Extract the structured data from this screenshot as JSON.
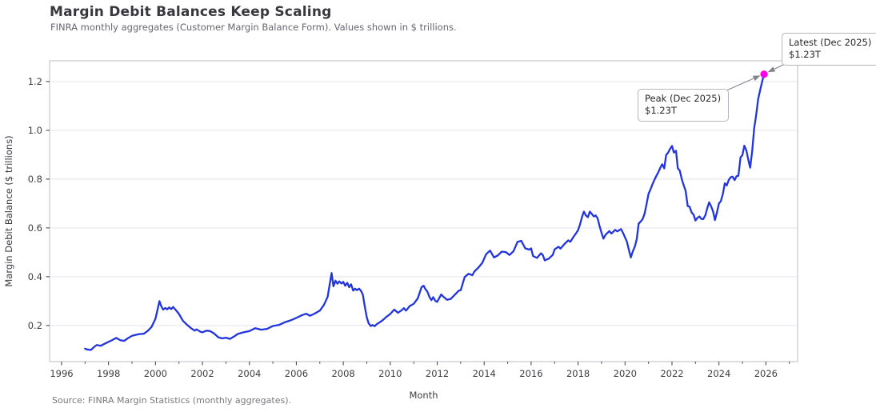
{
  "header": {
    "title": "Margin Debit Balances Keep Scaling",
    "subtitle": "FINRA monthly aggregates (Customer Margin Balance Form). Values shown in $ trillions."
  },
  "footer": {
    "source": "Source: FINRA Margin Statistics (monthly aggregates)."
  },
  "chart_data": {
    "type": "line",
    "title": "Margin Debit Balances Keep Scaling",
    "xlabel": "Month",
    "ylabel": "Margin Debit Balance ($ trillions)",
    "x_ticks": [
      1996,
      1998,
      2000,
      2002,
      2004,
      2006,
      2008,
      2010,
      2012,
      2014,
      2016,
      2018,
      2020,
      2022,
      2024,
      2026
    ],
    "x_minor_ticks": [
      1997,
      1999,
      2001,
      2003,
      2005,
      2007,
      2009,
      2011,
      2013,
      2015,
      2017,
      2019,
      2021,
      2023,
      2025,
      2027
    ],
    "y_ticks": [
      0.2,
      0.4,
      0.6,
      0.8,
      1.0,
      1.2
    ],
    "xlim": [
      1995.49,
      2027.35
    ],
    "ylim": [
      0.052,
      1.285
    ],
    "grid": "horizontal",
    "legend": "none",
    "colors": {
      "line": "#2134dd",
      "marker": "#ff00e6",
      "grid": "#e9e9f1",
      "spine": "#c8c8ce",
      "tick": "#4b4b52",
      "tick_label": "#3c3c43",
      "axis_label": "#3c3c43",
      "arrow": "#84848c"
    },
    "series": [
      {
        "name": "Margin debit balance",
        "points": [
          [
            1997.0,
            0.105
          ],
          [
            1997.08,
            0.102
          ],
          [
            1997.25,
            0.1
          ],
          [
            1997.42,
            0.115
          ],
          [
            1997.5,
            0.12
          ],
          [
            1997.67,
            0.117
          ],
          [
            1997.83,
            0.125
          ],
          [
            1998.0,
            0.133
          ],
          [
            1998.17,
            0.141
          ],
          [
            1998.33,
            0.149
          ],
          [
            1998.5,
            0.14
          ],
          [
            1998.67,
            0.137
          ],
          [
            1998.83,
            0.148
          ],
          [
            1999.0,
            0.158
          ],
          [
            1999.17,
            0.162
          ],
          [
            1999.33,
            0.165
          ],
          [
            1999.5,
            0.166
          ],
          [
            1999.67,
            0.178
          ],
          [
            1999.83,
            0.194
          ],
          [
            2000.0,
            0.228
          ],
          [
            2000.17,
            0.3
          ],
          [
            2000.25,
            0.278
          ],
          [
            2000.33,
            0.265
          ],
          [
            2000.42,
            0.272
          ],
          [
            2000.5,
            0.266
          ],
          [
            2000.58,
            0.274
          ],
          [
            2000.67,
            0.267
          ],
          [
            2000.75,
            0.276
          ],
          [
            2000.83,
            0.267
          ],
          [
            2000.92,
            0.257
          ],
          [
            2001.0,
            0.247
          ],
          [
            2001.17,
            0.219
          ],
          [
            2001.33,
            0.204
          ],
          [
            2001.5,
            0.19
          ],
          [
            2001.67,
            0.179
          ],
          [
            2001.75,
            0.184
          ],
          [
            2001.92,
            0.174
          ],
          [
            2002.0,
            0.172
          ],
          [
            2002.17,
            0.179
          ],
          [
            2002.33,
            0.177
          ],
          [
            2002.5,
            0.167
          ],
          [
            2002.67,
            0.152
          ],
          [
            2002.83,
            0.147
          ],
          [
            2003.0,
            0.15
          ],
          [
            2003.17,
            0.145
          ],
          [
            2003.33,
            0.154
          ],
          [
            2003.5,
            0.165
          ],
          [
            2003.75,
            0.172
          ],
          [
            2004.0,
            0.177
          ],
          [
            2004.25,
            0.189
          ],
          [
            2004.5,
            0.183
          ],
          [
            2004.75,
            0.186
          ],
          [
            2005.0,
            0.198
          ],
          [
            2005.25,
            0.202
          ],
          [
            2005.5,
            0.213
          ],
          [
            2005.75,
            0.221
          ],
          [
            2006.0,
            0.231
          ],
          [
            2006.25,
            0.243
          ],
          [
            2006.42,
            0.248
          ],
          [
            2006.58,
            0.24
          ],
          [
            2006.75,
            0.247
          ],
          [
            2007.0,
            0.261
          ],
          [
            2007.17,
            0.284
          ],
          [
            2007.33,
            0.317
          ],
          [
            2007.5,
            0.415
          ],
          [
            2007.58,
            0.361
          ],
          [
            2007.67,
            0.384
          ],
          [
            2007.75,
            0.371
          ],
          [
            2007.83,
            0.381
          ],
          [
            2007.92,
            0.372
          ],
          [
            2008.0,
            0.379
          ],
          [
            2008.08,
            0.363
          ],
          [
            2008.17,
            0.375
          ],
          [
            2008.25,
            0.357
          ],
          [
            2008.33,
            0.369
          ],
          [
            2008.42,
            0.343
          ],
          [
            2008.5,
            0.351
          ],
          [
            2008.58,
            0.345
          ],
          [
            2008.67,
            0.351
          ],
          [
            2008.75,
            0.343
          ],
          [
            2008.83,
            0.327
          ],
          [
            2008.92,
            0.276
          ],
          [
            2009.0,
            0.233
          ],
          [
            2009.08,
            0.209
          ],
          [
            2009.17,
            0.198
          ],
          [
            2009.25,
            0.202
          ],
          [
            2009.33,
            0.197
          ],
          [
            2009.42,
            0.205
          ],
          [
            2009.5,
            0.21
          ],
          [
            2009.67,
            0.221
          ],
          [
            2009.83,
            0.235
          ],
          [
            2010.0,
            0.247
          ],
          [
            2010.17,
            0.265
          ],
          [
            2010.33,
            0.252
          ],
          [
            2010.5,
            0.264
          ],
          [
            2010.58,
            0.271
          ],
          [
            2010.67,
            0.261
          ],
          [
            2010.83,
            0.28
          ],
          [
            2011.0,
            0.289
          ],
          [
            2011.17,
            0.311
          ],
          [
            2011.33,
            0.357
          ],
          [
            2011.42,
            0.363
          ],
          [
            2011.5,
            0.349
          ],
          [
            2011.58,
            0.339
          ],
          [
            2011.67,
            0.317
          ],
          [
            2011.75,
            0.304
          ],
          [
            2011.83,
            0.316
          ],
          [
            2011.92,
            0.301
          ],
          [
            2012.0,
            0.297
          ],
          [
            2012.17,
            0.327
          ],
          [
            2012.25,
            0.319
          ],
          [
            2012.42,
            0.305
          ],
          [
            2012.58,
            0.309
          ],
          [
            2012.75,
            0.326
          ],
          [
            2012.92,
            0.343
          ],
          [
            2013.0,
            0.345
          ],
          [
            2013.17,
            0.399
          ],
          [
            2013.33,
            0.412
          ],
          [
            2013.5,
            0.406
          ],
          [
            2013.58,
            0.421
          ],
          [
            2013.75,
            0.437
          ],
          [
            2013.92,
            0.457
          ],
          [
            2014.08,
            0.492
          ],
          [
            2014.25,
            0.507
          ],
          [
            2014.42,
            0.479
          ],
          [
            2014.58,
            0.487
          ],
          [
            2014.75,
            0.503
          ],
          [
            2014.92,
            0.501
          ],
          [
            2015.08,
            0.489
          ],
          [
            2015.25,
            0.505
          ],
          [
            2015.42,
            0.543
          ],
          [
            2015.58,
            0.547
          ],
          [
            2015.75,
            0.516
          ],
          [
            2015.92,
            0.511
          ],
          [
            2016.0,
            0.516
          ],
          [
            2016.08,
            0.485
          ],
          [
            2016.25,
            0.477
          ],
          [
            2016.42,
            0.496
          ],
          [
            2016.5,
            0.488
          ],
          [
            2016.58,
            0.467
          ],
          [
            2016.75,
            0.474
          ],
          [
            2016.92,
            0.489
          ],
          [
            2017.0,
            0.512
          ],
          [
            2017.17,
            0.523
          ],
          [
            2017.25,
            0.515
          ],
          [
            2017.42,
            0.534
          ],
          [
            2017.58,
            0.549
          ],
          [
            2017.67,
            0.543
          ],
          [
            2017.83,
            0.567
          ],
          [
            2017.92,
            0.579
          ],
          [
            2018.0,
            0.591
          ],
          [
            2018.08,
            0.614
          ],
          [
            2018.17,
            0.646
          ],
          [
            2018.25,
            0.667
          ],
          [
            2018.33,
            0.651
          ],
          [
            2018.42,
            0.644
          ],
          [
            2018.5,
            0.667
          ],
          [
            2018.58,
            0.658
          ],
          [
            2018.67,
            0.647
          ],
          [
            2018.75,
            0.651
          ],
          [
            2018.83,
            0.639
          ],
          [
            2018.92,
            0.606
          ],
          [
            2019.0,
            0.579
          ],
          [
            2019.08,
            0.556
          ],
          [
            2019.17,
            0.572
          ],
          [
            2019.33,
            0.587
          ],
          [
            2019.42,
            0.577
          ],
          [
            2019.58,
            0.592
          ],
          [
            2019.67,
            0.586
          ],
          [
            2019.83,
            0.595
          ],
          [
            2019.92,
            0.578
          ],
          [
            2020.0,
            0.561
          ],
          [
            2020.08,
            0.544
          ],
          [
            2020.17,
            0.507
          ],
          [
            2020.25,
            0.479
          ],
          [
            2020.33,
            0.504
          ],
          [
            2020.42,
            0.524
          ],
          [
            2020.5,
            0.555
          ],
          [
            2020.58,
            0.617
          ],
          [
            2020.67,
            0.627
          ],
          [
            2020.75,
            0.636
          ],
          [
            2020.83,
            0.658
          ],
          [
            2020.92,
            0.699
          ],
          [
            2021.0,
            0.739
          ],
          [
            2021.08,
            0.757
          ],
          [
            2021.17,
            0.779
          ],
          [
            2021.25,
            0.797
          ],
          [
            2021.33,
            0.812
          ],
          [
            2021.42,
            0.829
          ],
          [
            2021.5,
            0.846
          ],
          [
            2021.58,
            0.861
          ],
          [
            2021.67,
            0.844
          ],
          [
            2021.75,
            0.899
          ],
          [
            2021.83,
            0.908
          ],
          [
            2021.92,
            0.924
          ],
          [
            2022.0,
            0.936
          ],
          [
            2022.08,
            0.909
          ],
          [
            2022.17,
            0.916
          ],
          [
            2022.25,
            0.844
          ],
          [
            2022.33,
            0.835
          ],
          [
            2022.42,
            0.799
          ],
          [
            2022.5,
            0.774
          ],
          [
            2022.58,
            0.752
          ],
          [
            2022.67,
            0.689
          ],
          [
            2022.75,
            0.687
          ],
          [
            2022.83,
            0.664
          ],
          [
            2022.92,
            0.654
          ],
          [
            2023.0,
            0.63
          ],
          [
            2023.08,
            0.641
          ],
          [
            2023.17,
            0.647
          ],
          [
            2023.25,
            0.637
          ],
          [
            2023.33,
            0.636
          ],
          [
            2023.42,
            0.652
          ],
          [
            2023.5,
            0.68
          ],
          [
            2023.58,
            0.705
          ],
          [
            2023.67,
            0.688
          ],
          [
            2023.75,
            0.667
          ],
          [
            2023.83,
            0.632
          ],
          [
            2023.92,
            0.665
          ],
          [
            2024.0,
            0.701
          ],
          [
            2024.08,
            0.709
          ],
          [
            2024.17,
            0.741
          ],
          [
            2024.25,
            0.783
          ],
          [
            2024.33,
            0.774
          ],
          [
            2024.42,
            0.797
          ],
          [
            2024.5,
            0.808
          ],
          [
            2024.58,
            0.81
          ],
          [
            2024.67,
            0.796
          ],
          [
            2024.75,
            0.812
          ],
          [
            2024.83,
            0.814
          ],
          [
            2024.92,
            0.89
          ],
          [
            2025.0,
            0.898
          ],
          [
            2025.08,
            0.937
          ],
          [
            2025.17,
            0.917
          ],
          [
            2025.25,
            0.879
          ],
          [
            2025.33,
            0.847
          ],
          [
            2025.42,
            0.92
          ],
          [
            2025.5,
            1.008
          ],
          [
            2025.58,
            1.06
          ],
          [
            2025.67,
            1.128
          ],
          [
            2025.75,
            1.162
          ],
          [
            2025.83,
            1.196
          ],
          [
            2025.92,
            1.23
          ]
        ]
      }
    ],
    "annotations": [
      {
        "label": "Latest (Dec 2025)",
        "value": "$1.23T",
        "point": [
          2025.92,
          1.23
        ]
      },
      {
        "label": "Peak (Dec 2025)",
        "value": "$1.23T",
        "point": [
          2025.92,
          1.23
        ]
      }
    ]
  }
}
